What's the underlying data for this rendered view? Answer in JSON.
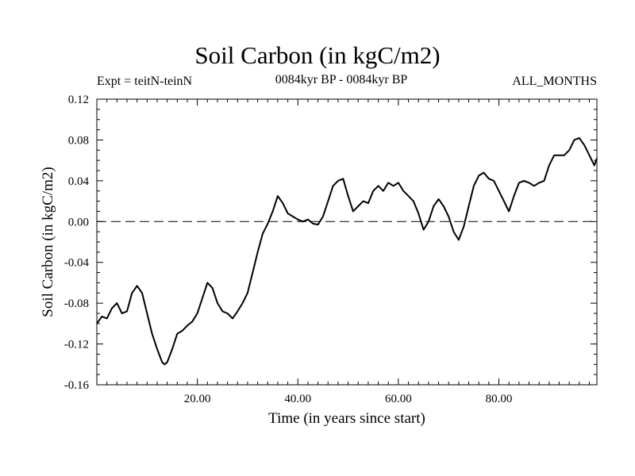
{
  "header": {
    "title": "Soil Carbon (in kgC/m2)",
    "expt": "Expt = teitN-teinN",
    "period": "0084kyr BP - 0084kyr BP",
    "months": "ALL_MONTHS"
  },
  "chart_data": {
    "type": "line",
    "title": "Soil Carbon (in kgC/m2)",
    "xlabel": "Time (in years since start)",
    "ylabel": "Soil Carbon (in kgC/m2)",
    "xlim": [
      0,
      99.5
    ],
    "ylim": [
      -0.16,
      0.12
    ],
    "xticks": [
      20,
      40,
      60,
      80
    ],
    "xtick_labels": [
      "20.00",
      "40.00",
      "60.00",
      "80.00"
    ],
    "yticks": [
      -0.16,
      -0.12,
      -0.08,
      -0.04,
      0.0,
      0.04,
      0.08,
      0.12
    ],
    "ytick_labels": [
      "-0.16",
      "-0.12",
      "-0.08",
      "-0.04",
      "0.00",
      "0.04",
      "0.08",
      "0.12"
    ],
    "reference_line": {
      "y": 0.0,
      "style": "dashed"
    },
    "series": [
      {
        "x": [
          0,
          1,
          2,
          3,
          4,
          5,
          6,
          7,
          8,
          9,
          10,
          11,
          12,
          13,
          13.5,
          14,
          15,
          16,
          17,
          18,
          19,
          20,
          21,
          22,
          23,
          24,
          25,
          26,
          27,
          28,
          29,
          30,
          31,
          32,
          33,
          34,
          35,
          36,
          37,
          38,
          39,
          40,
          41,
          42,
          43,
          44,
          45,
          46,
          47,
          48,
          49,
          50,
          51,
          52,
          53,
          54,
          55,
          56,
          57,
          58,
          59,
          60,
          61,
          62,
          63,
          64,
          65,
          66,
          67,
          68,
          69,
          70,
          71,
          72,
          73,
          74,
          75,
          76,
          77,
          78,
          79,
          80,
          81,
          82,
          83,
          84,
          85,
          86,
          87,
          88,
          89,
          90,
          91,
          92,
          93,
          94,
          95,
          96,
          97,
          98,
          99,
          99.5
        ],
        "y": [
          -0.1,
          -0.093,
          -0.095,
          -0.085,
          -0.08,
          -0.09,
          -0.088,
          -0.07,
          -0.063,
          -0.07,
          -0.09,
          -0.11,
          -0.125,
          -0.138,
          -0.14,
          -0.138,
          -0.125,
          -0.11,
          -0.107,
          -0.102,
          -0.098,
          -0.09,
          -0.075,
          -0.06,
          -0.065,
          -0.08,
          -0.088,
          -0.09,
          -0.095,
          -0.088,
          -0.08,
          -0.07,
          -0.05,
          -0.03,
          -0.012,
          -0.002,
          0.01,
          0.025,
          0.018,
          0.008,
          0.005,
          0.002,
          0.0,
          0.002,
          -0.002,
          -0.003,
          0.005,
          0.02,
          0.035,
          0.04,
          0.042,
          0.025,
          0.01,
          0.015,
          0.02,
          0.018,
          0.03,
          0.035,
          0.03,
          0.038,
          0.035,
          0.038,
          0.03,
          0.025,
          0.02,
          0.008,
          -0.008,
          0.0,
          0.015,
          0.022,
          0.015,
          0.005,
          -0.01,
          -0.018,
          -0.005,
          0.015,
          0.035,
          0.045,
          0.048,
          0.042,
          0.04,
          0.03,
          0.02,
          0.01,
          0.025,
          0.038,
          0.04,
          0.038,
          0.035,
          0.038,
          0.04,
          0.055,
          0.065,
          0.065,
          0.065,
          0.07,
          0.08,
          0.082,
          0.075,
          0.065,
          0.055,
          0.062
        ]
      }
    ],
    "grid": false,
    "legend": "none"
  }
}
